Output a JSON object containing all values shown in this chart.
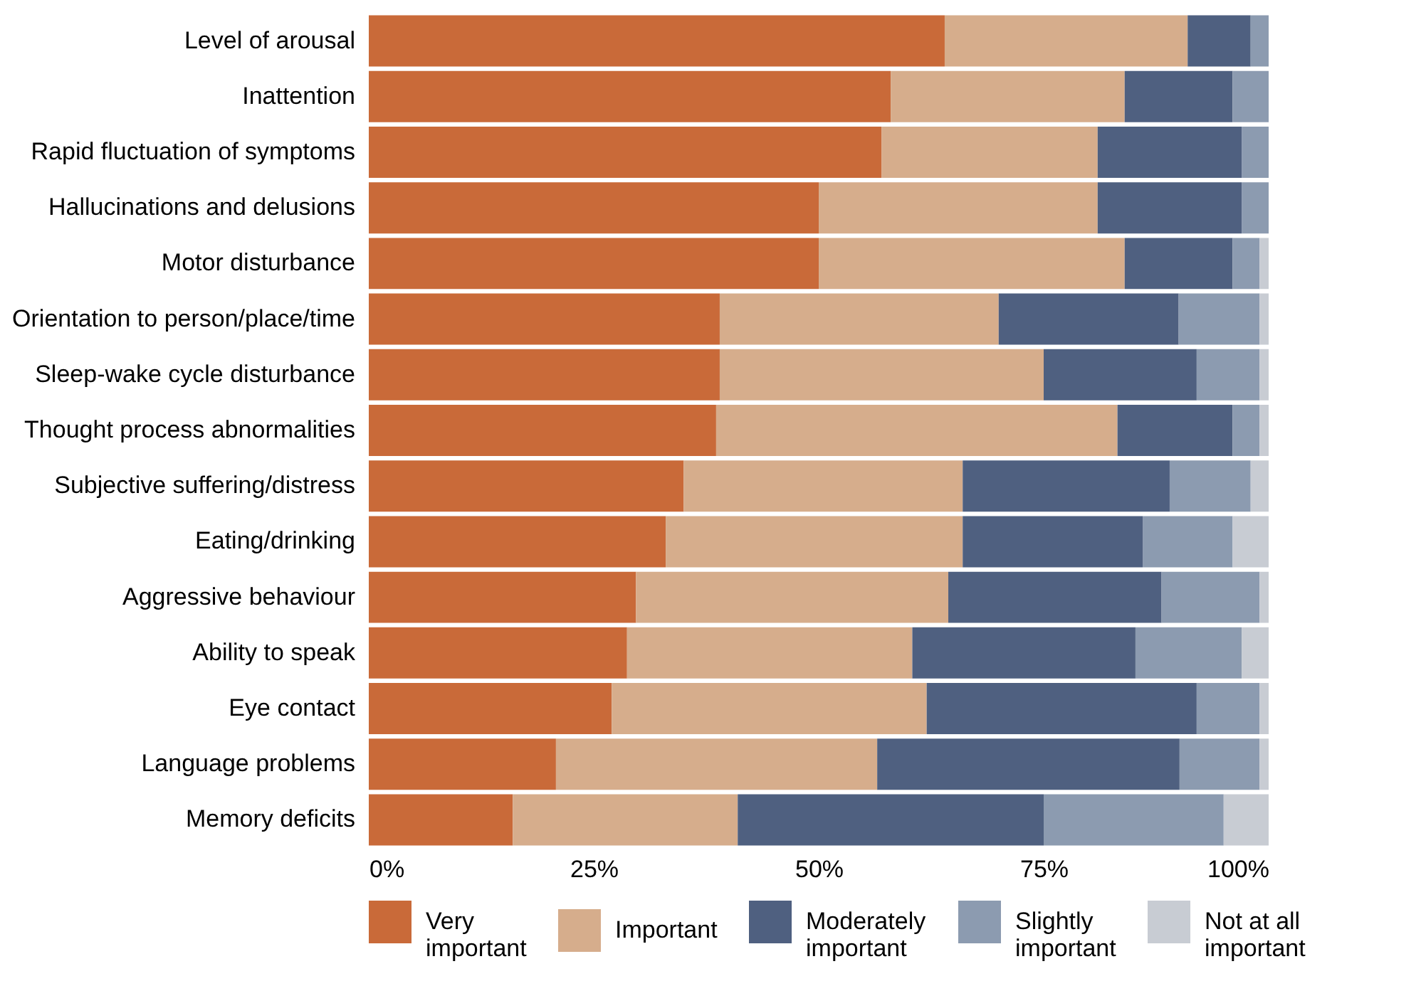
{
  "chart_data": {
    "type": "bar",
    "orientation": "horizontal",
    "stacked": true,
    "categories": [
      "Level of arousal",
      "Inattention",
      "Rapid fluctuation of symptoms",
      "Hallucinations and delusions",
      "Motor disturbance",
      "Orientation to person/place/time",
      "Sleep-wake cycle disturbance",
      "Thought process abnormalities",
      "Subjective suffering/distress",
      "Eating/drinking",
      "Aggressive behaviour",
      "Ability to speak",
      "Eye contact",
      "Language problems",
      "Memory deficits"
    ],
    "series": [
      {
        "name": "Very important",
        "color": "#c96a39",
        "values": [
          64,
          58,
          57,
          50,
          50,
          39,
          39,
          38.6,
          35,
          33,
          29.7,
          28.7,
          27,
          20.8,
          16
        ]
      },
      {
        "name": "Important",
        "color": "#d6ad8c",
        "values": [
          27,
          26,
          24,
          31,
          34,
          31,
          36,
          44.6,
          31,
          33,
          34.7,
          31.7,
          35,
          35.7,
          25
        ]
      },
      {
        "name": "Moderately important",
        "color": "#4f6080",
        "values": [
          7,
          12,
          16,
          16,
          12,
          20,
          17,
          12.8,
          23,
          20,
          23.7,
          24.8,
          30,
          33.6,
          34
        ]
      },
      {
        "name": "Slightly important",
        "color": "#8c9bb0",
        "values": [
          2,
          4,
          3,
          3,
          3,
          9,
          7,
          3,
          9,
          10,
          10.9,
          11.8,
          7,
          8.9,
          20
        ]
      },
      {
        "name": "Not at all important",
        "color": "#c8ccd3",
        "values": [
          0,
          0,
          0,
          0,
          1,
          1,
          1,
          1,
          2,
          4,
          1,
          3,
          1,
          1,
          5
        ]
      }
    ],
    "xlim": [
      0,
      100
    ],
    "xticks": [
      {
        "value": 0,
        "label": "0%"
      },
      {
        "value": 25,
        "label": "25%"
      },
      {
        "value": 50,
        "label": "50%"
      },
      {
        "value": 75,
        "label": "75%"
      },
      {
        "value": 100,
        "label": "100%"
      }
    ],
    "grid": false,
    "legend": "bottom"
  }
}
